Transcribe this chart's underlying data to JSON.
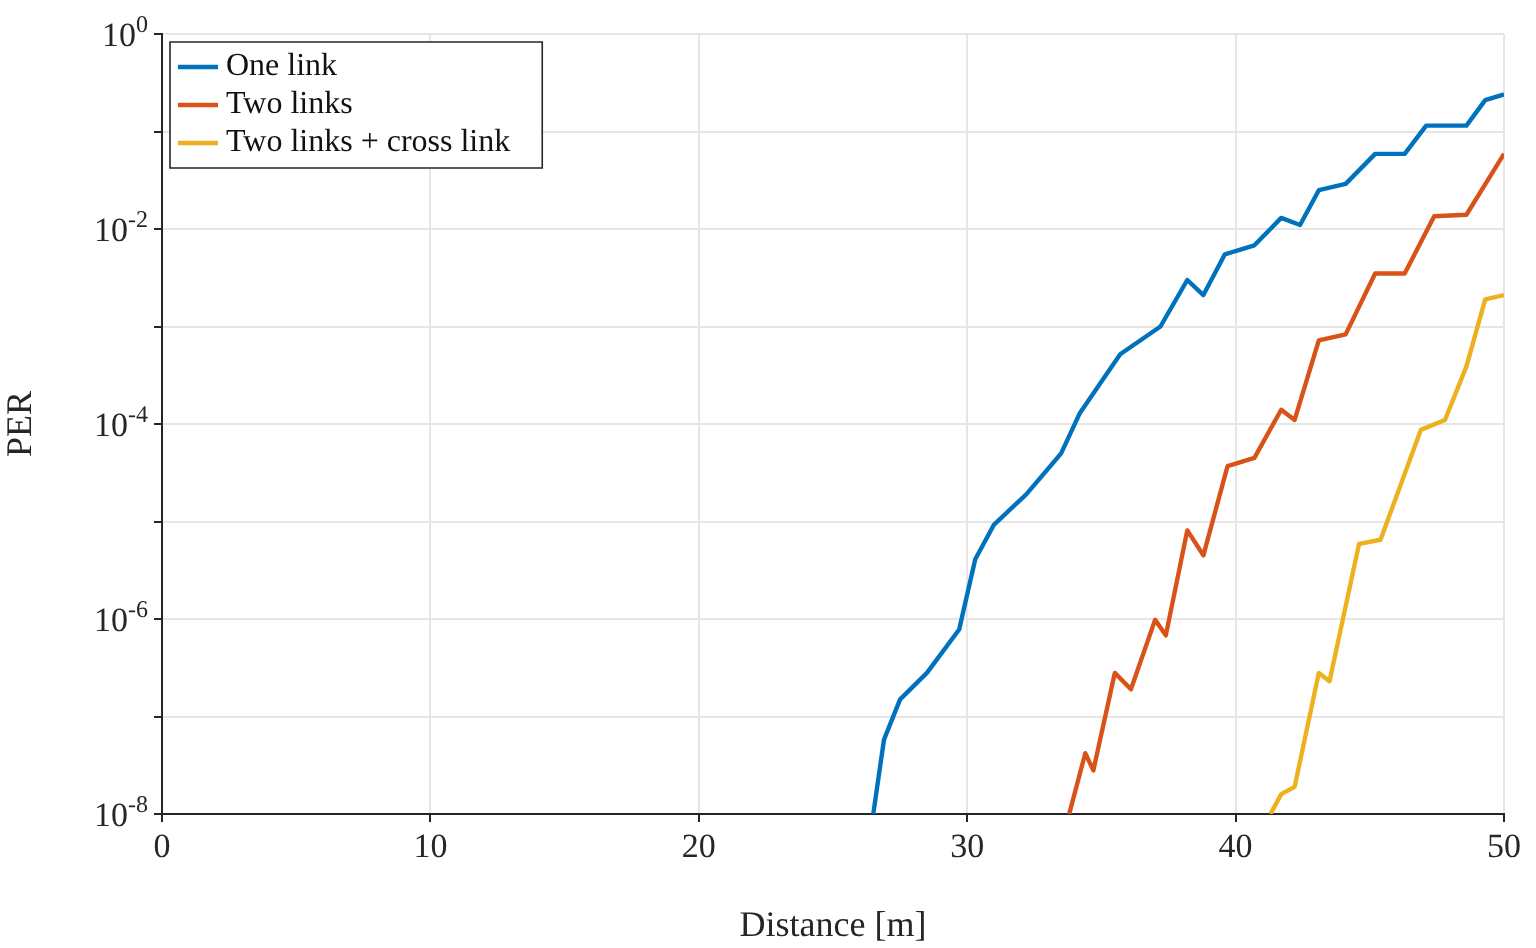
{
  "chart_data": {
    "type": "line",
    "xlabel": "Distance [m]",
    "ylabel": "PER",
    "log": "y",
    "grid": true,
    "legend": "top left",
    "marker": "none",
    "line_style": "solid",
    "xlim": [
      0,
      50
    ],
    "xticks": [
      0,
      10,
      20,
      30,
      40,
      50
    ],
    "ylim": [
      1e-08,
      1
    ],
    "yticks": [
      {
        "value": 1e-08,
        "label": "10$^{-8}$"
      },
      {
        "value": 1e-07,
        "label": null
      },
      {
        "value": 1e-06,
        "label": "10$^{-6}$"
      },
      {
        "value": 1e-05,
        "label": null
      },
      {
        "value": 0.0001,
        "label": "10$^{-4}$"
      },
      {
        "value": 0.001,
        "label": null
      },
      {
        "value": 0.01,
        "label": "10$^{-2}$"
      },
      {
        "value": 0.1,
        "label": null
      },
      {
        "value": 1,
        "label": "10$^{0}$"
      }
    ],
    "series": [
      {
        "name": "One link",
        "color": "#0072bd",
        "x": [
          26.5,
          26.9,
          27.5,
          28.5,
          29.7,
          30.3,
          31.0,
          32.2,
          33.5,
          34.2,
          35.7,
          37.2,
          38.2,
          38.8,
          39.6,
          40.7,
          41.7,
          42.4,
          43.1,
          44.1,
          45.2,
          46.3,
          47.1,
          48.6,
          49.3,
          50
        ],
        "values": [
          1e-08,
          5.8e-08,
          1.5e-07,
          2.8e-07,
          7.8e-07,
          4.1e-06,
          9.3e-06,
          1.9e-05,
          5e-05,
          0.00013,
          0.00052,
          0.001,
          0.003,
          0.0021,
          0.0055,
          0.0068,
          0.013,
          0.011,
          0.025,
          0.029,
          0.059,
          0.059,
          0.115,
          0.115,
          0.21,
          0.24
        ]
      },
      {
        "name": "Two links",
        "color": "#d95319",
        "x": [
          33.8,
          34.4,
          34.7,
          35.5,
          36.1,
          37.0,
          37.4,
          38.2,
          38.8,
          39.7,
          40.7,
          41.7,
          42.2,
          43.1,
          44.1,
          45.2,
          46.3,
          47.4,
          48.6,
          50
        ],
        "values": [
          1e-08,
          4.2e-08,
          2.8e-08,
          2.8e-07,
          1.9e-07,
          9.8e-07,
          6.8e-07,
          8.1e-06,
          4.5e-06,
          3.7e-05,
          4.5e-05,
          0.00014,
          0.00011,
          0.00072,
          0.00083,
          0.0035,
          0.0035,
          0.0135,
          0.014,
          0.059
        ]
      },
      {
        "name": "Two links + cross link",
        "color": "#edb120",
        "x": [
          41.3,
          41.7,
          42.2,
          43.1,
          43.5,
          44.6,
          45.4,
          46.9,
          47.8,
          48.6,
          49.3,
          50
        ],
        "values": [
          1e-08,
          1.6e-08,
          1.9e-08,
          2.8e-07,
          2.3e-07,
          5.9e-06,
          6.5e-06,
          8.7e-05,
          0.00011,
          0.00039,
          0.0019,
          0.0021
        ]
      }
    ]
  }
}
